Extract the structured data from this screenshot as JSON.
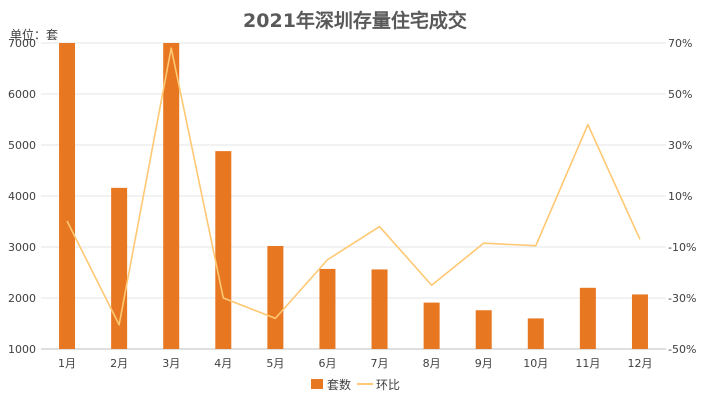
{
  "chart_data": {
    "type": "bar",
    "title": "2021年深圳存量住宅成交",
    "unit_label": "单位：套",
    "categories": [
      "1月",
      "2月",
      "3月",
      "4月",
      "5月",
      "6月",
      "7月",
      "8月",
      "9月",
      "10月",
      "11月",
      "12月"
    ],
    "series": [
      {
        "name": "套数",
        "type": "bar",
        "axis": "left",
        "color": "#E87722",
        "values": [
          7000,
          4160,
          7000,
          4880,
          3020,
          2570,
          2560,
          1910,
          1760,
          1600,
          2200,
          2070
        ]
      },
      {
        "name": "环比",
        "type": "line",
        "axis": "right",
        "color": "#FFC873",
        "values": [
          0.2,
          -40.5,
          68.0,
          -30.0,
          -38.0,
          -15.0,
          -2.0,
          -25.0,
          -8.5,
          -9.5,
          38.0,
          -7.0
        ]
      }
    ],
    "y_left": {
      "min": 1000,
      "max": 7000,
      "ticks": [
        1000,
        2000,
        3000,
        4000,
        5000,
        6000,
        7000
      ]
    },
    "y_right": {
      "min": -50,
      "max": 70,
      "ticks": [
        "-50%",
        "-30%",
        "-10%",
        "10%",
        "30%",
        "50%",
        "70%"
      ]
    },
    "grid": true,
    "legend_position": "bottom"
  }
}
